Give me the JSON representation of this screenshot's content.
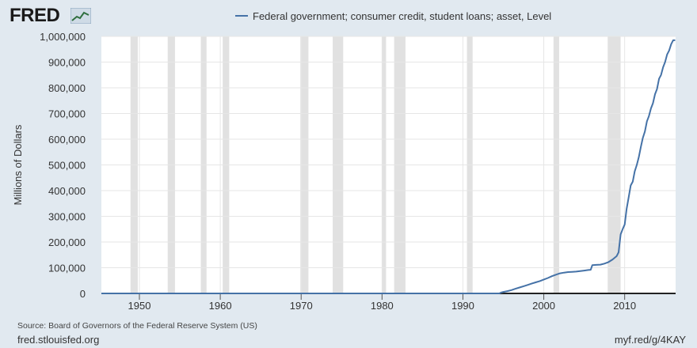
{
  "branding": {
    "logo_text": "FRED",
    "logo_icon": "fred-chart-line-icon",
    "source_text": "Source: Board of Governors of the Federal Reserve System (US)",
    "site_text": "fred.stlouisfed.org",
    "short_url": "myf.red/g/4KAY"
  },
  "colors": {
    "background": "#e1e9f0",
    "plot_background": "#ffffff",
    "series_line": "#4572a7",
    "recession_band": "#e1e1e1",
    "grid_line": "#e6e6e6"
  },
  "chart_data": {
    "type": "line",
    "title": "",
    "legend_position": "top-center",
    "grid": true,
    "xlabel": "",
    "ylabel": "Millions of Dollars",
    "xlim": [
      1945.3,
      2016.3
    ],
    "ylim": [
      0,
      1000000
    ],
    "x_ticks": [
      1950,
      1960,
      1970,
      1980,
      1990,
      2000,
      2010
    ],
    "x_tick_labels": [
      "1950",
      "1960",
      "1970",
      "1980",
      "1990",
      "2000",
      "2010"
    ],
    "y_ticks": [
      0,
      100000,
      200000,
      300000,
      400000,
      500000,
      600000,
      700000,
      800000,
      900000,
      1000000
    ],
    "y_tick_labels": [
      "0",
      "100,000",
      "200,000",
      "300,000",
      "400,000",
      "500,000",
      "600,000",
      "700,000",
      "800,000",
      "900,000",
      "1,000,000"
    ],
    "recessions": [
      [
        1948.9,
        1949.8
      ],
      [
        1953.5,
        1954.4
      ],
      [
        1957.6,
        1958.3
      ],
      [
        1960.3,
        1961.1
      ],
      [
        1969.9,
        1970.9
      ],
      [
        1973.9,
        1975.2
      ],
      [
        1980.0,
        1980.5
      ],
      [
        1981.5,
        1982.9
      ],
      [
        1990.5,
        1991.2
      ],
      [
        2001.2,
        2001.9
      ],
      [
        2007.9,
        2009.5
      ]
    ],
    "series": [
      {
        "name": "Federal government; consumer credit, student loans; asset, Level",
        "x": [
          1945.3,
          1950,
          1960,
          1970,
          1980,
          1990,
          1994.5,
          1994.7,
          1995.0,
          1995.5,
          1996.0,
          1996.5,
          1997.0,
          1997.5,
          1998.0,
          1998.5,
          1999.0,
          1999.5,
          2000.0,
          2000.5,
          2001.0,
          2001.5,
          2002.0,
          2002.5,
          2003.0,
          2003.5,
          2004.0,
          2004.5,
          2005.0,
          2005.5,
          2005.8,
          2006.0,
          2006.5,
          2007.0,
          2007.5,
          2008.0,
          2008.5,
          2009.0,
          2009.25,
          2009.5,
          2009.75,
          2010.0,
          2010.25,
          2010.5,
          2010.75,
          2011.0,
          2011.25,
          2011.5,
          2011.75,
          2012.0,
          2012.25,
          2012.5,
          2012.75,
          2013.0,
          2013.25,
          2013.5,
          2013.75,
          2014.0,
          2014.25,
          2014.5,
          2014.75,
          2015.0,
          2015.25,
          2015.5,
          2015.75,
          2016.0,
          2016.25
        ],
        "values": [
          0,
          0,
          0,
          0,
          0,
          0,
          0,
          3000,
          6000,
          9000,
          13000,
          18000,
          23000,
          28000,
          33000,
          38000,
          43000,
          48000,
          54000,
          60000,
          67000,
          73000,
          78000,
          81000,
          83000,
          84000,
          85000,
          87000,
          89000,
          91000,
          92000,
          110000,
          111000,
          112000,
          116000,
          122000,
          132000,
          145000,
          160000,
          230000,
          250000,
          268000,
          330000,
          375000,
          420000,
          435000,
          475000,
          500000,
          530000,
          570000,
          605000,
          630000,
          670000,
          690000,
          720000,
          740000,
          775000,
          795000,
          835000,
          850000,
          880000,
          900000,
          930000,
          945000,
          970000,
          985000,
          985000
        ]
      }
    ]
  }
}
